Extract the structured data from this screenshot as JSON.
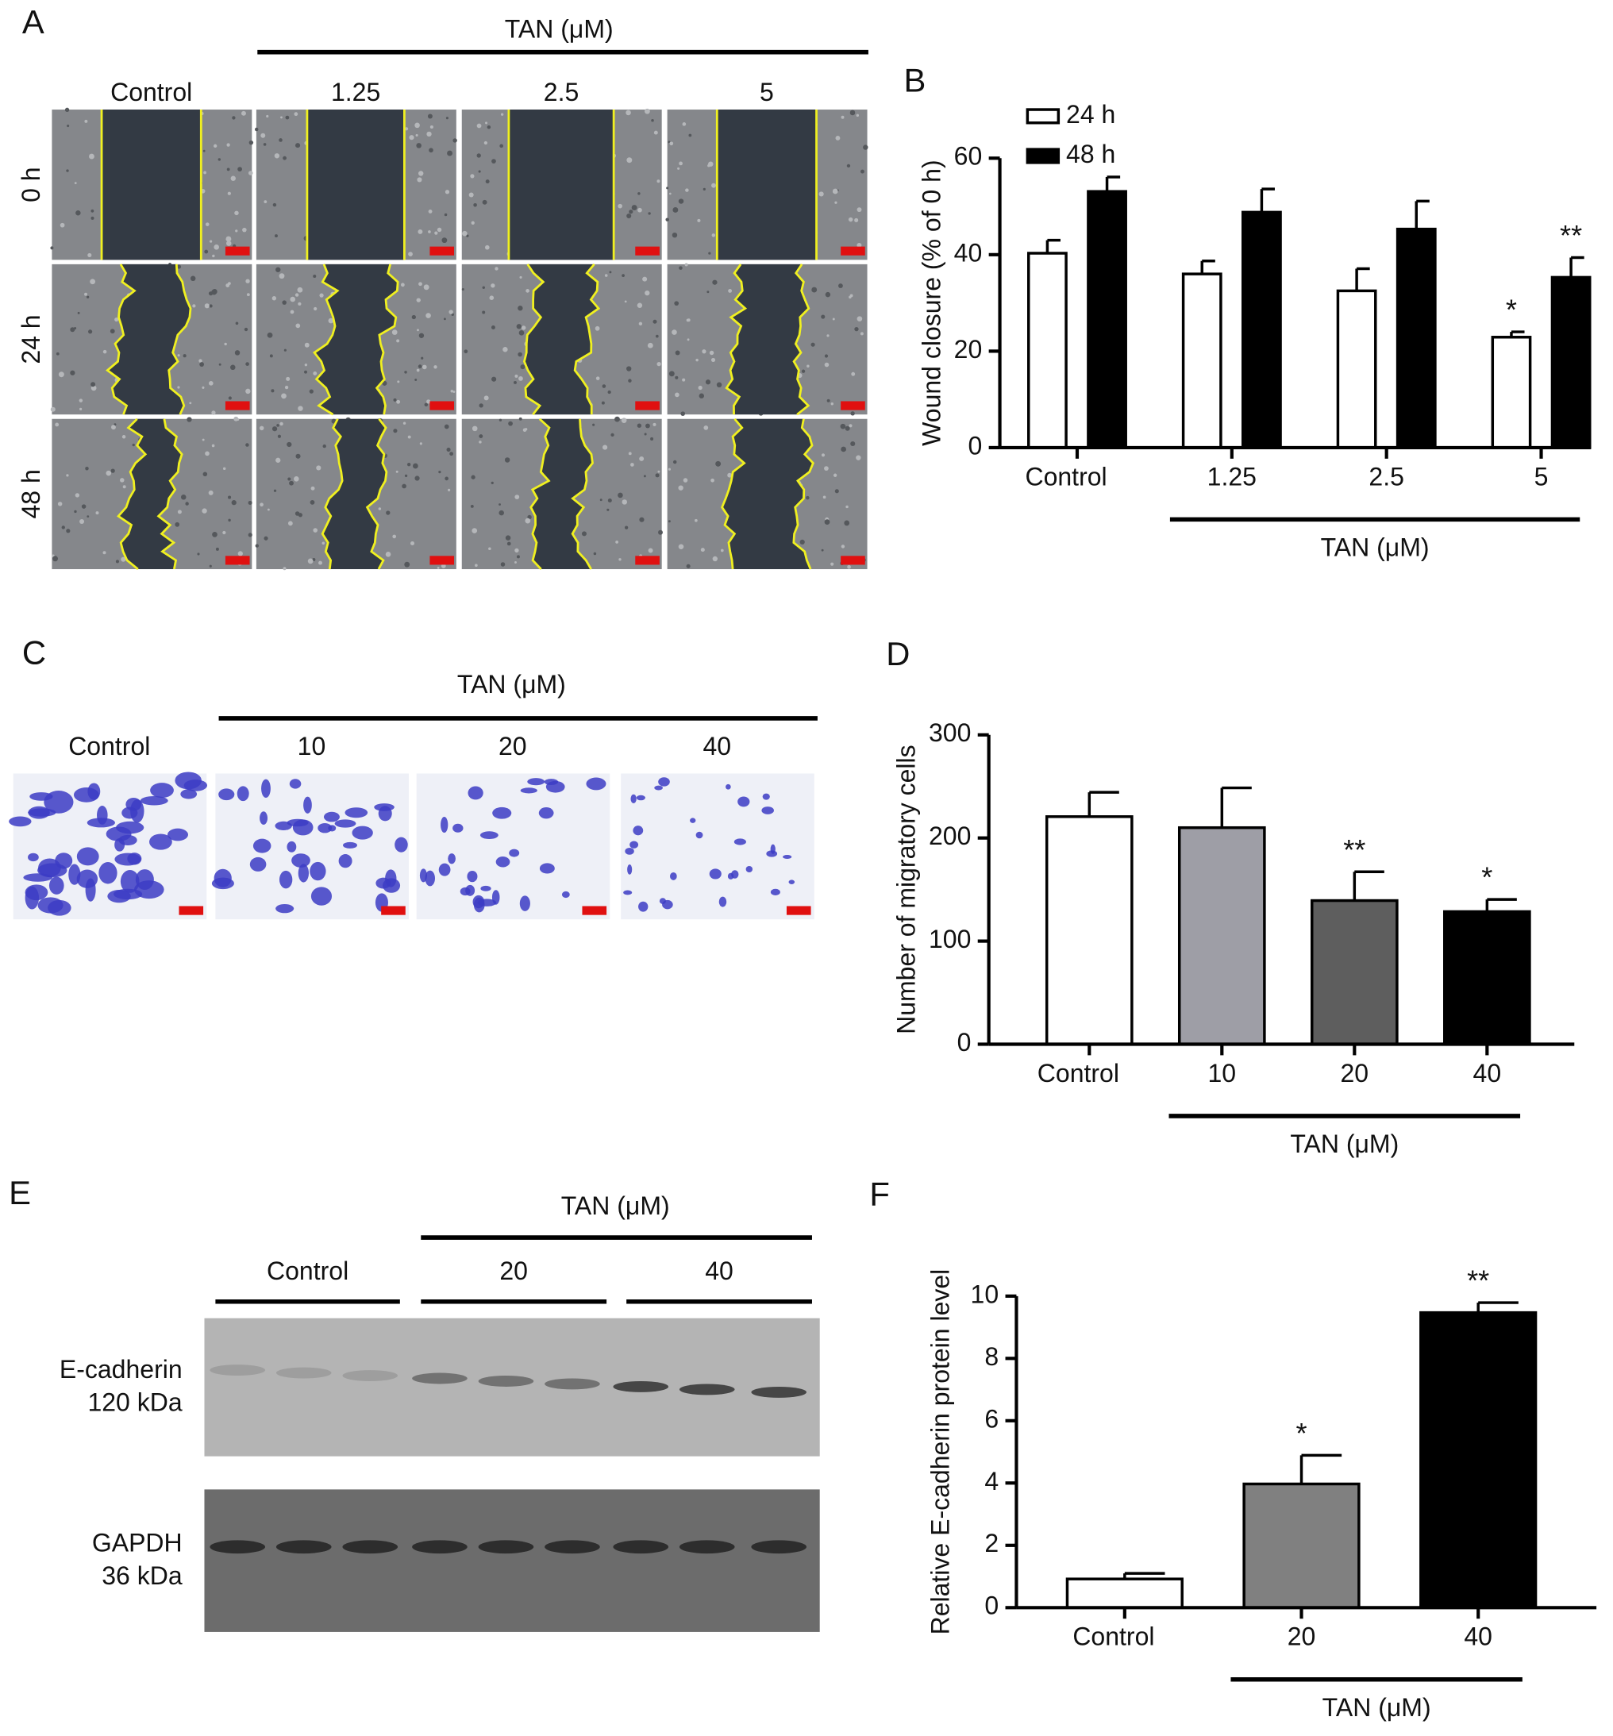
{
  "panels": {
    "A": {
      "letter": "A",
      "group_label": "TAN (μM)",
      "columns": [
        "Control",
        "1.25",
        "2.5",
        "5"
      ],
      "rows": [
        "0 h",
        "24 h",
        "48 h"
      ]
    },
    "C": {
      "letter": "C",
      "group_label": "TAN (μM)",
      "columns": [
        "Control",
        "10",
        "20",
        "40"
      ]
    },
    "E": {
      "letter": "E",
      "group_label": "TAN (μM)",
      "lanes": [
        "Control",
        "20",
        "40"
      ],
      "blots": [
        {
          "name": "E-cadherin",
          "size": "120 kDa"
        },
        {
          "name": "GAPDH",
          "size": "36 kDa"
        }
      ]
    }
  },
  "chart_data": [
    {
      "type": "bar",
      "panel_label": "B",
      "y_label": "Wound closure (% of 0 h)",
      "group_label": "TAN (μM)",
      "categories": [
        "Control",
        "1.25",
        "2.5",
        "5"
      ],
      "series": [
        {
          "name": "24 h",
          "color": "#ffffff",
          "values": [
            40.3,
            36.0,
            32.5,
            22.9
          ],
          "errors": [
            2.7,
            2.7,
            4.6,
            1.1
          ],
          "significance": [
            null,
            null,
            null,
            "*"
          ]
        },
        {
          "name": "48 h",
          "color": "#000000",
          "values": [
            53.1,
            48.8,
            45.3,
            35.3
          ],
          "errors": [
            3.0,
            4.8,
            5.8,
            4.1
          ],
          "significance": [
            null,
            null,
            null,
            "**"
          ]
        }
      ],
      "ylim": [
        0,
        60
      ],
      "yticks": [
        0,
        20,
        40,
        60
      ]
    },
    {
      "type": "bar",
      "panel_label": "D",
      "y_label": "Number of migratory cells",
      "group_label": "TAN (μM)",
      "categories": [
        "Control",
        "10",
        "20",
        "40"
      ],
      "values": [
        220.7,
        210,
        139.3,
        128.6
      ],
      "errors": [
        23.6,
        38.6,
        27.9,
        11.8
      ],
      "significance": [
        null,
        null,
        "**",
        "*"
      ],
      "colors": [
        "#ffffff",
        "#9e9ea6",
        "#5e5e5e",
        "#000000"
      ],
      "ylim": [
        0,
        300
      ],
      "yticks": [
        0,
        100,
        200,
        300
      ]
    },
    {
      "type": "bar",
      "panel_label": "F",
      "y_label": "Relative E-cadherin protein level",
      "group_label": "TAN (μM)",
      "categories": [
        "Control",
        "20",
        "40"
      ],
      "values": [
        0.92,
        3.97,
        9.47
      ],
      "errors": [
        0.18,
        0.92,
        0.32
      ],
      "significance": [
        null,
        "*",
        "**"
      ],
      "colors": [
        "#ffffff",
        "#808080",
        "#000000"
      ],
      "ylim": [
        0,
        10
      ],
      "yticks": [
        0,
        2,
        4,
        6,
        8,
        10
      ]
    }
  ]
}
